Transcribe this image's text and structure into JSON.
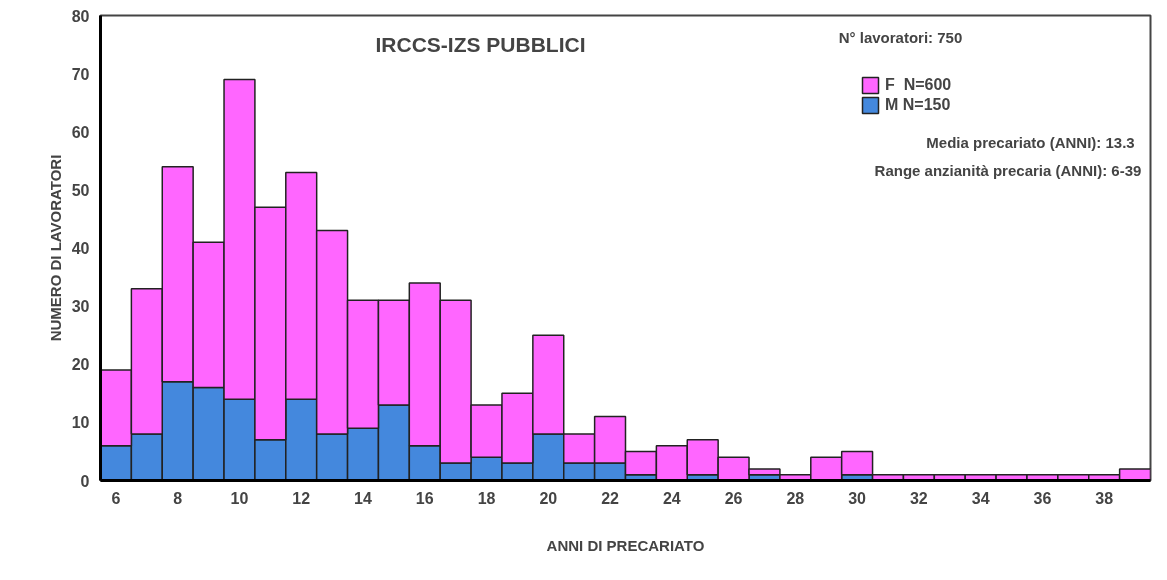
{
  "chart_data": {
    "type": "bar",
    "stacked": true,
    "title": "IRCCS-IZS PUBBLICI",
    "xlabel": "ANNI DI PRECARIATO",
    "ylabel": "NUMERO DI LAVORATORI",
    "x": [
      6,
      7,
      8,
      9,
      10,
      11,
      12,
      13,
      14,
      15,
      16,
      17,
      18,
      19,
      20,
      21,
      22,
      23,
      24,
      25,
      26,
      27,
      28,
      29,
      30,
      31,
      32,
      33,
      34,
      35,
      36,
      37,
      38,
      39
    ],
    "series": [
      {
        "name": "M N=150",
        "color": "#4488dd",
        "values": [
          6,
          8,
          17,
          16,
          14,
          7,
          14,
          8,
          9,
          13,
          6,
          3,
          4,
          3,
          8,
          3,
          3,
          1,
          0,
          1,
          0,
          1,
          0,
          0,
          1,
          0,
          0,
          0,
          0,
          0,
          0,
          0,
          0,
          0
        ]
      },
      {
        "name": "F  N=600",
        "color": "#ff66ff",
        "values": [
          13,
          25,
          37,
          25,
          55,
          40,
          39,
          35,
          22,
          18,
          28,
          28,
          9,
          12,
          17,
          5,
          8,
          4,
          6,
          6,
          4,
          1,
          1,
          4,
          4,
          1,
          1,
          1,
          1,
          1,
          1,
          1,
          1,
          2
        ]
      }
    ],
    "xlim": [
      5.5,
      39.5
    ],
    "xticks": [
      6,
      8,
      10,
      12,
      14,
      16,
      18,
      20,
      22,
      24,
      26,
      28,
      30,
      32,
      34,
      36,
      38
    ],
    "ylim": [
      0,
      80
    ],
    "yticks": [
      0,
      10,
      20,
      30,
      40,
      50,
      60,
      70,
      80
    ],
    "grid": false,
    "legend": "top right",
    "annotations": [
      "N° lavoratori: 750",
      "Media precariato (ANNI): 13.3",
      "Range anzianità  precaria (ANNI): 6-39"
    ]
  }
}
